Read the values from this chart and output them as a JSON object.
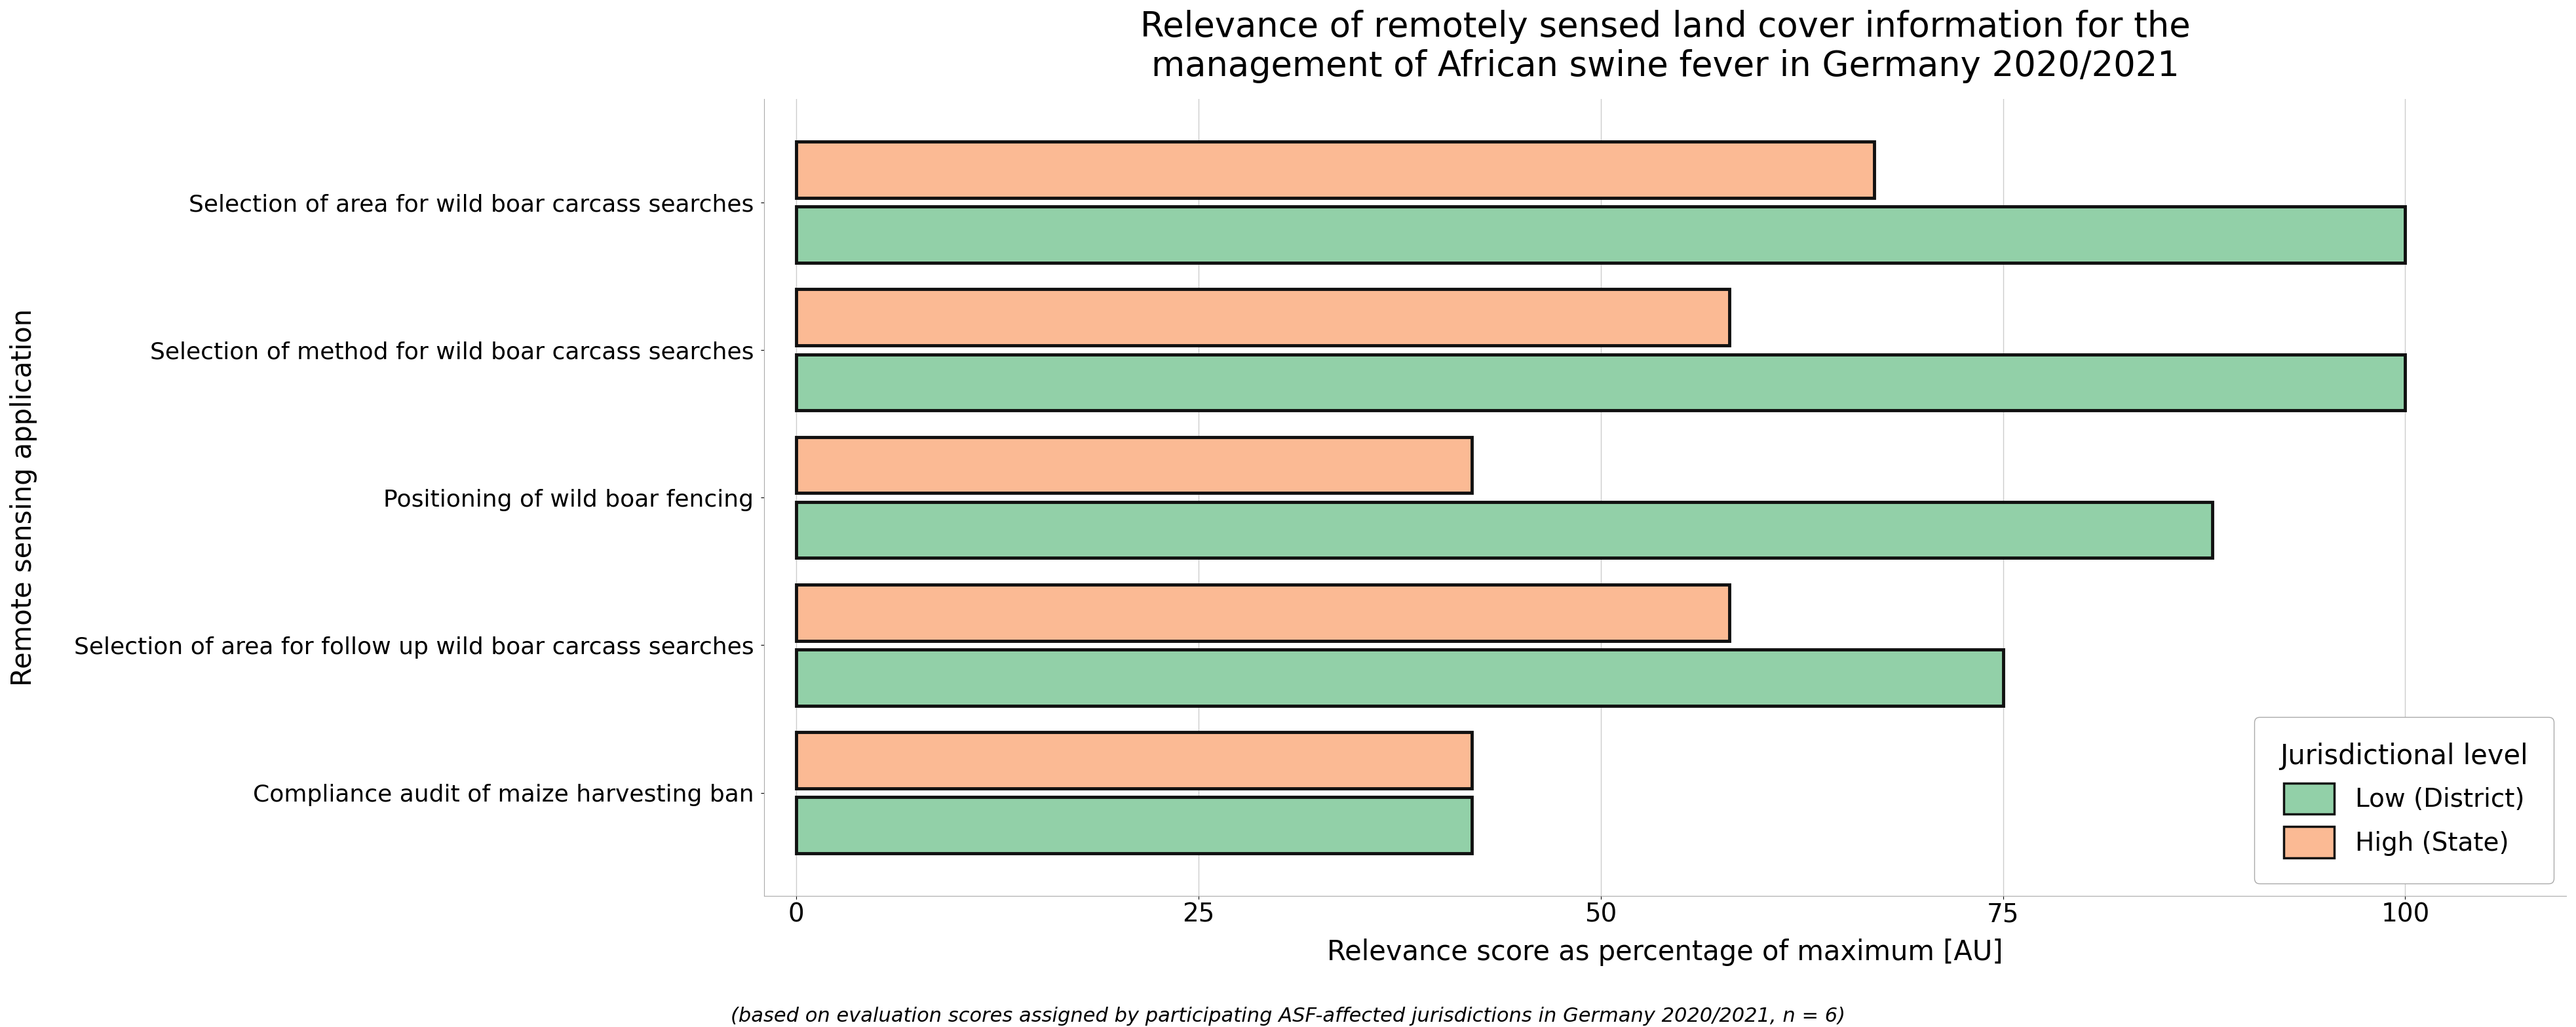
{
  "title": "Relevance of remotely sensed land cover information for the\nmanagement of African swine fever in Germany 2020/2021",
  "subtitle": "(based on evaluation scores assigned by participating ASF-affected jurisdictions in Germany 2020/2021, n = 6)",
  "xlabel": "Relevance score as percentage of maximum [AU]",
  "ylabel": "Remote sensing application",
  "categories": [
    "Selection of area for wild boar carcass searches",
    "Selection of method for wild boar carcass searches",
    "Positioning of wild boar fencing",
    "Selection of area for follow up wild boar carcass searches",
    "Compliance audit of maize harvesting ban"
  ],
  "low_district": [
    100,
    100,
    88,
    75,
    42
  ],
  "high_state": [
    67,
    58,
    42,
    58,
    42
  ],
  "color_low": "#92D0A8",
  "color_high": "#FBBA94",
  "bar_edgecolor": "#111111",
  "bar_linewidth": 3.5,
  "legend_title": "Jurisdictional level",
  "legend_labels": [
    "Low (District)",
    "High (State)"
  ],
  "xlim": [
    -2,
    110
  ],
  "xticks": [
    0,
    25,
    50,
    75,
    100
  ],
  "background_color": "#ffffff",
  "grid_color": "#cccccc",
  "title_fontsize": 38,
  "axis_label_fontsize": 30,
  "tick_fontsize": 28,
  "legend_fontsize": 28,
  "legend_title_fontsize": 30,
  "category_fontsize": 26,
  "subtitle_fontsize": 22
}
